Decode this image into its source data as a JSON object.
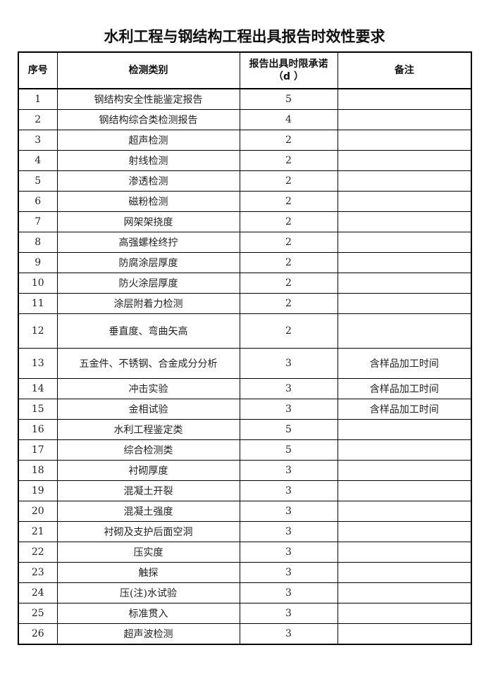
{
  "title": "水利工程与钢结构工程出具报告时效性要求",
  "headers": [
    "序号",
    "检测类别",
    "报告出具时限承诺",
    "（d ）",
    "备注"
  ],
  "rows": [
    {
      "no": "1",
      "category": "钢结构安全性能鉴定报告",
      "days": "5",
      "note": ""
    },
    {
      "no": "2",
      "category": "钢结构综合类检测报告",
      "days": "4",
      "note": ""
    },
    {
      "no": "3",
      "category": "超声检测",
      "days": "2",
      "note": ""
    },
    {
      "no": "4",
      "category": "射线检测",
      "days": "2",
      "note": ""
    },
    {
      "no": "5",
      "category": "渗透检测",
      "days": "2",
      "note": ""
    },
    {
      "no": "6",
      "category": "磁粉检测",
      "days": "2",
      "note": ""
    },
    {
      "no": "7",
      "category": "网架架挠度",
      "days": "2",
      "note": ""
    },
    {
      "no": "8",
      "category": "高强螺栓终拧",
      "days": "2",
      "note": ""
    },
    {
      "no": "9",
      "category": "防腐涂层厚度",
      "days": "2",
      "note": ""
    },
    {
      "no": "10",
      "category": "防火涂层厚度",
      "days": "2",
      "note": ""
    },
    {
      "no": "11",
      "category": "涂层附着力检测",
      "days": "2",
      "note": ""
    },
    {
      "no": "12",
      "category": "垂直度、弯曲矢高",
      "days": "2",
      "note": ""
    },
    {
      "no": "13",
      "category": "五金件、不锈钢、合金成分分析",
      "days": "3",
      "note": "含样品加工时间"
    },
    {
      "no": "14",
      "category": "冲击实验",
      "days": "3",
      "note": "含样品加工时间"
    },
    {
      "no": "15",
      "category": "金相试验",
      "days": "3",
      "note": "含样品加工时间"
    },
    {
      "no": "16",
      "category": "水利工程鉴定类",
      "days": "5",
      "note": ""
    },
    {
      "no": "17",
      "category": "综合检测类",
      "days": "5",
      "note": ""
    },
    {
      "no": "18",
      "category": "衬砌厚度",
      "days": "3",
      "note": ""
    },
    {
      "no": "19",
      "category": "混凝土开裂",
      "days": "3",
      "note": ""
    },
    {
      "no": "20",
      "category": "混凝土强度",
      "days": "3",
      "note": ""
    },
    {
      "no": "21",
      "category": "衬砌及支护后面空洞",
      "days": "3",
      "note": ""
    },
    {
      "no": "22",
      "category": "压实度",
      "days": "3",
      "note": ""
    },
    {
      "no": "23",
      "category": "触探",
      "days": "3",
      "note": ""
    },
    {
      "no": "24",
      "category": "压(注)水试验",
      "days": "3",
      "note": ""
    },
    {
      "no": "25",
      "category": "标准贯入",
      "days": "3",
      "note": ""
    },
    {
      "no": "26",
      "category": "超声波检测",
      "days": "3",
      "note": ""
    }
  ]
}
